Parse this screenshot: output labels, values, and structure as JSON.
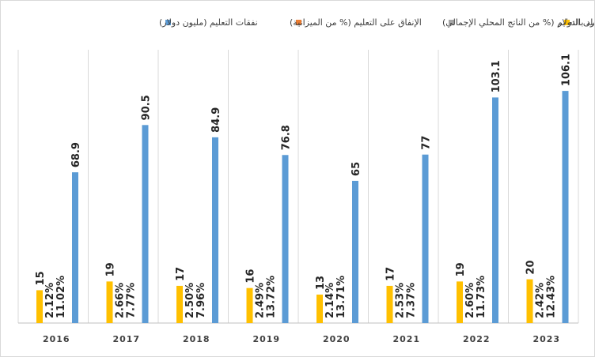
{
  "chart_data": {
    "type": "bar",
    "categories": [
      "2016",
      "2017",
      "2018",
      "2019",
      "2020",
      "2021",
      "2022",
      "2023"
    ],
    "series": [
      {
        "name": "نفقات التعليم للفرد بالدولار",
        "color": "#ffc000",
        "values": [
          15,
          19,
          17,
          16,
          13,
          17,
          19,
          20
        ],
        "labels": [
          "15",
          "19",
          "17",
          "16",
          "13",
          "17",
          "19",
          "20"
        ]
      },
      {
        "name": "الإنفاق على التعليم (% من الناتج المحلي الإجمالي)",
        "color": "#a5a5a5",
        "values": [
          2.12,
          2.66,
          2.5,
          2.49,
          2.14,
          2.53,
          2.6,
          2.42
        ],
        "labels": [
          "2.12%",
          "2.66%",
          "2.50%",
          "2.49%",
          "2.14%",
          "2.53%",
          "2.60%",
          "2.42%"
        ]
      },
      {
        "name": "الإنفاق على التعليم (% من الميزانية)",
        "color": "#ed7d31",
        "values": [
          11.02,
          7.77,
          7.96,
          13.72,
          13.71,
          7.37,
          11.73,
          12.43
        ],
        "labels": [
          "11.02%",
          "7.77%",
          "7.96%",
          "13.72%",
          "13.71%",
          "7.37%",
          "11.73%",
          "12.43%"
        ]
      },
      {
        "name": "نفقات التعليم (مليون دولار)",
        "color": "#5b9bd5",
        "values": [
          68.9,
          90.5,
          84.9,
          76.8,
          65,
          77,
          103.1,
          106.1
        ],
        "labels": [
          "68.9",
          "90.5",
          "84.9",
          "76.8",
          "65",
          "77",
          "103.1",
          "106.1"
        ]
      }
    ],
    "legend_order": [
      "نفقات التعليم (مليون دولار)",
      "الإنفاق على التعليم (% من الميزانية)",
      "الإنفاق على التعليم (% من الناتج المحلي الإجمالي)",
      "نفقات التعليم للفرد بالدولار"
    ],
    "legend_position": "top",
    "gridlines": "vertical category separators",
    "title": "",
    "xlabel": "",
    "ylabel": ""
  }
}
